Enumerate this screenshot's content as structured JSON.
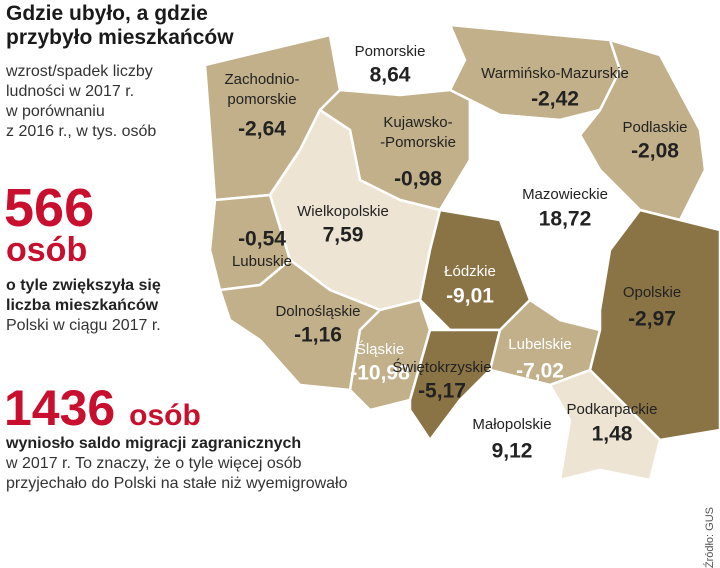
{
  "header": {
    "title": "Gdzie ubyło, a gdzie przybyło mieszkańców",
    "description": [
      "wzrost/spadek liczby",
      "ludności w 2017 r.",
      "w porównaniu",
      "z 2016 r., w tys. osób"
    ]
  },
  "stat1": {
    "value": "566",
    "unit": "osób",
    "bold": [
      "o tyle zwiększyła się",
      "liczba mieszkańców"
    ],
    "text": [
      "Polski w ciągu 2017 r."
    ]
  },
  "stat2": {
    "value": "1436",
    "unit": "osób",
    "bold": [
      "wyniosło saldo migracji zagranicznych"
    ],
    "text": [
      "w 2017 r. To znaczy, że o tyle więcej osób",
      "przyjechało do Polski na stałe niż wyemigrowało"
    ]
  },
  "source": "Źródło: GUS",
  "regions": [
    {
      "name": [
        "Zachodnio-",
        "pomorskie"
      ],
      "value": "-2,64",
      "color": "#c2b08a"
    },
    {
      "name": "Pomorskie",
      "value": "8,64",
      "color": "#ffffff"
    },
    {
      "name": "Warmińsko-Mazurskie",
      "value": "-2,42",
      "color": "#c2b08a"
    },
    {
      "name": "Podlaskie",
      "value": "-2,08",
      "color": "#c2b08a"
    },
    {
      "name": [
        "Kujawsko-",
        "-Pomorskie"
      ],
      "value": "-0,98",
      "color": "#c2b08a"
    },
    {
      "name": "Mazowieckie",
      "value": "18,72",
      "color": "#ffffff"
    },
    {
      "name": "Wielkopolskie",
      "value": "7,59",
      "color": "#ede4d3"
    },
    {
      "name": "Lubuskie",
      "value": "-0,54",
      "color": "#c2b08a"
    },
    {
      "name": "Dolnośląskie",
      "value": "-1,16",
      "color": "#c2b08a"
    },
    {
      "name": "Łódzkie",
      "value": "-9,01",
      "color": "#8a7446"
    },
    {
      "name": "Opolskie",
      "value": "-2,97",
      "color": "#c2b08a"
    },
    {
      "name": "Śląskie",
      "value": "-10,98",
      "color": "#8a7446"
    },
    {
      "name": "Świętokrzyskie",
      "value": "-5,17",
      "color": "#c2b08a"
    },
    {
      "name": "Lubelskie",
      "value": "-7,02",
      "color": "#8a7446"
    },
    {
      "name": "Małopolskie",
      "value": "9,12",
      "color": "#ffffff"
    },
    {
      "name": "Podkarpackie",
      "value": "1,48",
      "color": "#ede4d3"
    }
  ]
}
